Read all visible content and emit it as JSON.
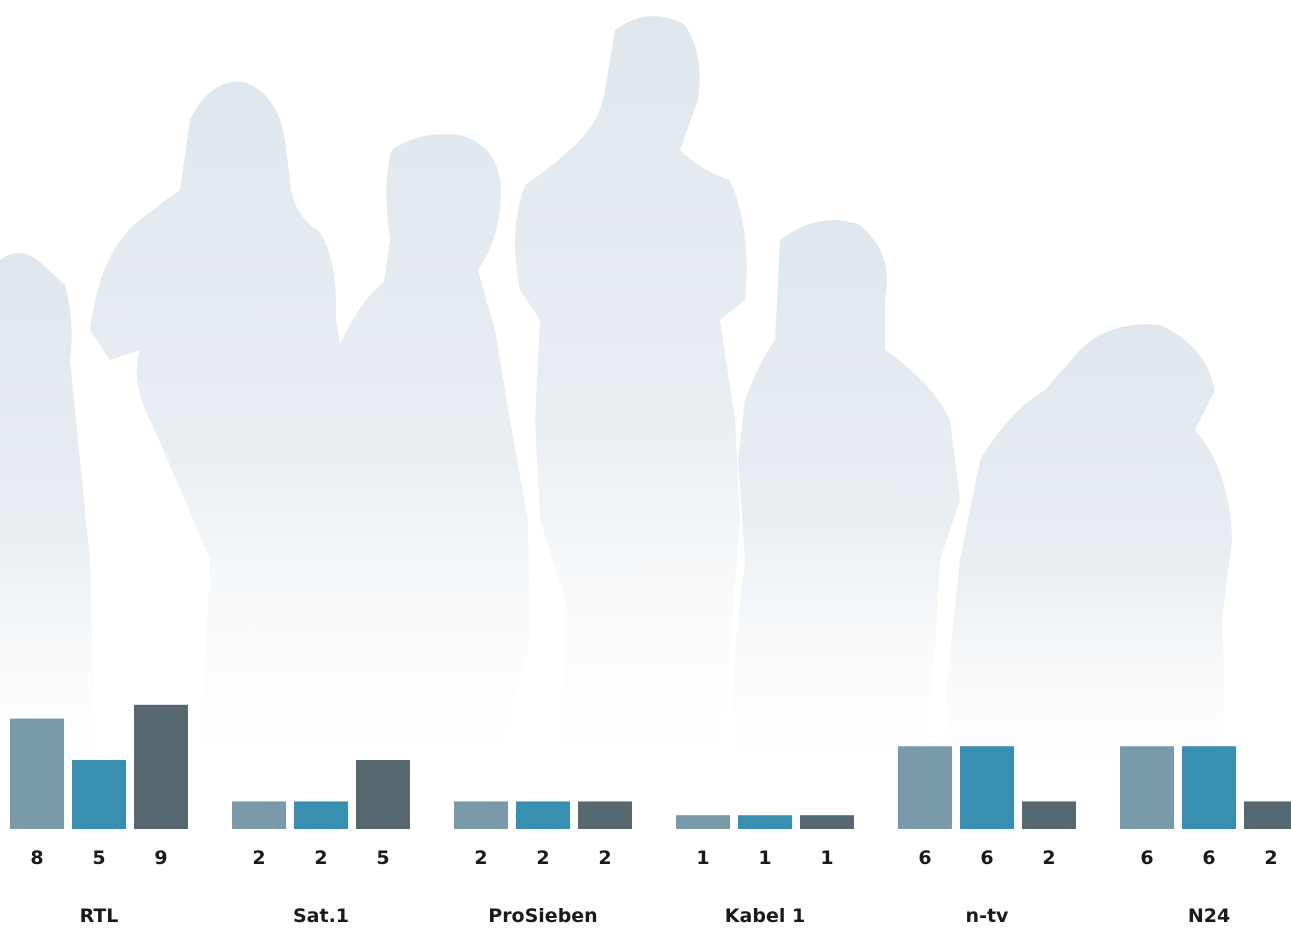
{
  "colors": {
    "series_1": "#7a9aab",
    "series_2": "#3790b1",
    "series_3": "#576871",
    "silhouette": "#e2e9ef",
    "text": "#1a1a1a"
  },
  "chart_data": {
    "type": "bar",
    "title": "",
    "xlabel": "",
    "ylabel": "",
    "ylim": [
      0,
      9
    ],
    "grid": false,
    "legend": "none",
    "categories": [
      "RTL",
      "Sat.1",
      "ProSieben",
      "Kabel 1",
      "n-tv",
      "N24"
    ],
    "series": [
      {
        "values": [
          8,
          2,
          2,
          1,
          6,
          6
        ]
      },
      {
        "values": [
          5,
          2,
          2,
          1,
          6,
          6
        ]
      },
      {
        "values": [
          9,
          5,
          2,
          1,
          2,
          2
        ]
      }
    ]
  }
}
